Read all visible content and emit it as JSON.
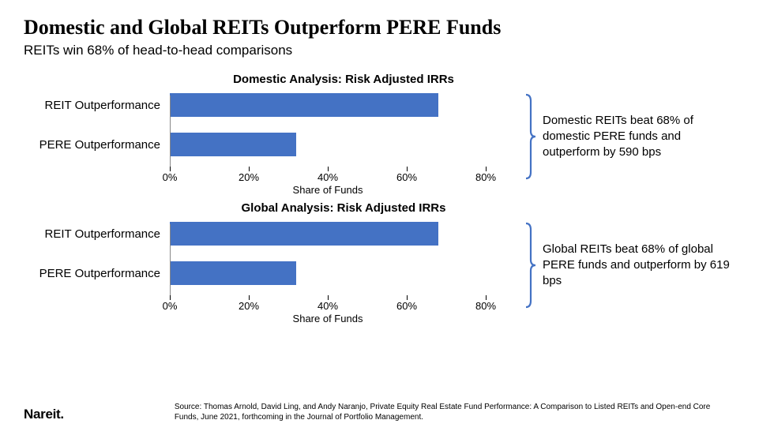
{
  "title": "Domestic and Global REITs Outperform PERE Funds",
  "subtitle": "REITs win 68% of head-to-head comparisons",
  "colors": {
    "bar": "#4472c4",
    "bracket": "#4472c4",
    "axis": "#000000",
    "text": "#000000",
    "background": "#ffffff"
  },
  "typography": {
    "title_family": "Georgia, serif",
    "title_size_pt": 26,
    "title_weight": "bold",
    "subtitle_size_pt": 17,
    "chart_title_size_pt": 15,
    "label_size_pt": 15,
    "tick_size_pt": 13,
    "annotation_size_pt": 15,
    "source_size_pt": 10
  },
  "x_axis": {
    "label": "Share of Funds",
    "min": 0,
    "max": 80,
    "ticks": [
      0,
      20,
      40,
      60,
      80
    ],
    "tick_labels": [
      "0%",
      "20%",
      "40%",
      "60%",
      "80%"
    ]
  },
  "charts": [
    {
      "title": "Domestic Analysis: Risk Adjusted IRRs",
      "type": "bar-horizontal",
      "bars": [
        {
          "label": "REIT Outperformance",
          "value": 68
        },
        {
          "label": "PERE Outperformance",
          "value": 32
        }
      ],
      "annotation": "Domestic REITs beat 68% of domestic PERE funds and outperform by 590 bps"
    },
    {
      "title": "Global Analysis: Risk Adjusted IRRs",
      "type": "bar-horizontal",
      "bars": [
        {
          "label": "REIT Outperformance",
          "value": 68
        },
        {
          "label": "PERE Outperformance",
          "value": 32
        }
      ],
      "annotation": "Global REITs beat 68% of global PERE funds and outperform by 619 bps"
    }
  ],
  "logo": "Nareit.",
  "source": "Source: Thomas Arnold, David Ling, and Andy Naranjo, Private Equity Real Estate Fund Performance: A Comparison to Listed REITs and Open-end Core Funds, June 2021, forthcoming in the Journal of Portfolio Management."
}
